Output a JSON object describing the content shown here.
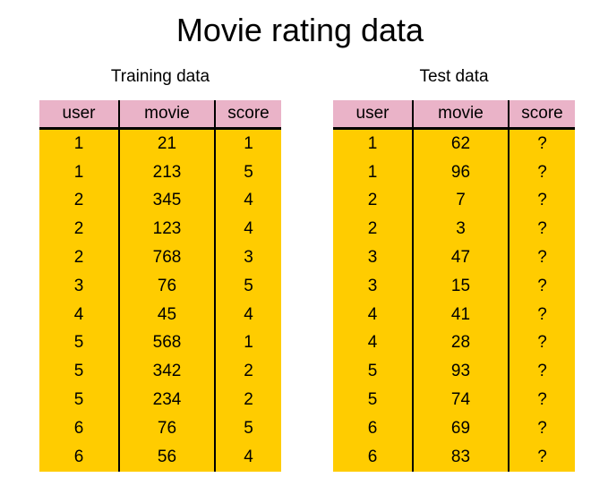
{
  "title": "Movie rating data",
  "colors": {
    "header_bg": "#eab3c8",
    "cell_bg": "#ffcc00",
    "rule": "#000000"
  },
  "training": {
    "title": "Training data",
    "columns": [
      "user",
      "movie",
      "score"
    ],
    "rows": [
      [
        "1",
        "21",
        "1"
      ],
      [
        "1",
        "213",
        "5"
      ],
      [
        "2",
        "345",
        "4"
      ],
      [
        "2",
        "123",
        "4"
      ],
      [
        "2",
        "768",
        "3"
      ],
      [
        "3",
        "76",
        "5"
      ],
      [
        "4",
        "45",
        "4"
      ],
      [
        "5",
        "568",
        "1"
      ],
      [
        "5",
        "342",
        "2"
      ],
      [
        "5",
        "234",
        "2"
      ],
      [
        "6",
        "76",
        "5"
      ],
      [
        "6",
        "56",
        "4"
      ]
    ]
  },
  "test": {
    "title": "Test data",
    "columns": [
      "user",
      "movie",
      "score"
    ],
    "rows": [
      [
        "1",
        "62",
        "?"
      ],
      [
        "1",
        "96",
        "?"
      ],
      [
        "2",
        "7",
        "?"
      ],
      [
        "2",
        "3",
        "?"
      ],
      [
        "3",
        "47",
        "?"
      ],
      [
        "3",
        "15",
        "?"
      ],
      [
        "4",
        "41",
        "?"
      ],
      [
        "4",
        "28",
        "?"
      ],
      [
        "5",
        "93",
        "?"
      ],
      [
        "5",
        "74",
        "?"
      ],
      [
        "6",
        "69",
        "?"
      ],
      [
        "6",
        "83",
        "?"
      ]
    ]
  }
}
